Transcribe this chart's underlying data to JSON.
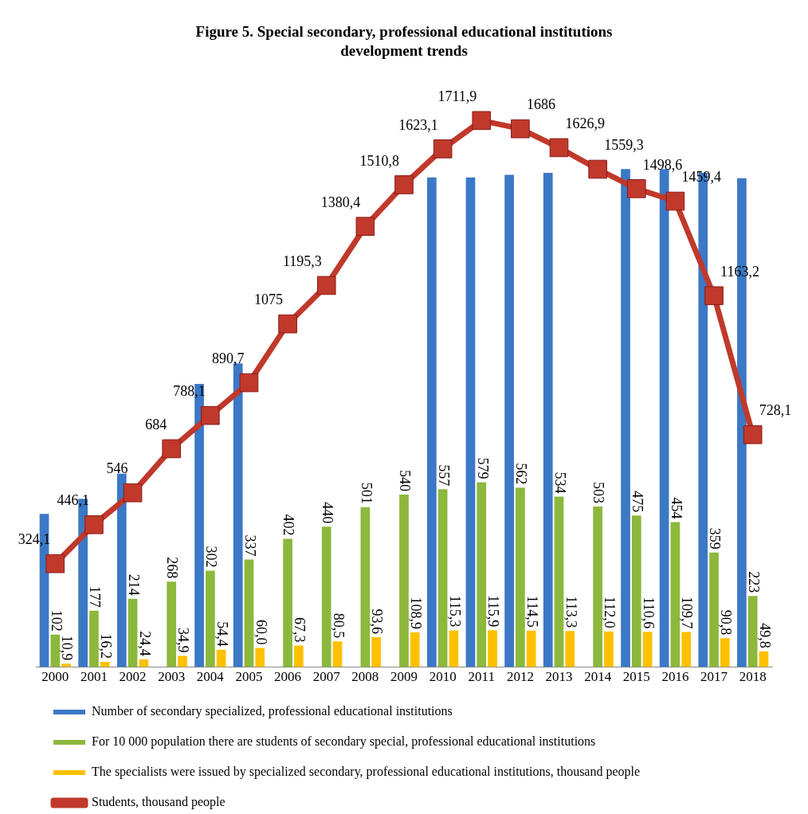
{
  "chart_data": {
    "type": "bar",
    "title": "Figure 5. Special secondary, professional educational institutions development trends",
    "legend": "bottom",
    "categories": [
      "2000",
      "2001",
      "2002",
      "2003",
      "2004",
      "2005",
      "2006",
      "2007",
      "2008",
      "2009",
      "2010",
      "2011",
      "2012",
      "2013",
      "2014",
      "2015",
      "2016",
      "2017",
      "2018"
    ],
    "series": [
      {
        "name": "Number of secondary specialized, professional educational institutions",
        "color": "#3b78c6",
        "values": [
          480,
          527,
          606,
          null,
          887,
          951,
          null,
          null,
          null,
          null,
          1534,
          1534,
          1542,
          1548,
          null,
          1560,
          1560,
          1548,
          1531
        ]
      },
      {
        "name": "For 10 000 population there are students of secondary special, professional educational institutions",
        "color": "#8cb83c",
        "values": [
          102,
          177,
          214,
          268,
          302,
          337,
          402,
          440,
          501,
          540,
          557,
          579,
          562,
          534,
          503,
          475,
          454,
          359,
          223
        ],
        "value_labels": [
          "102",
          "177",
          "214",
          "268",
          "302",
          "337",
          "402",
          "440",
          "501",
          "540",
          "557",
          "579",
          "562",
          "534",
          "503",
          "475",
          "454",
          "359",
          "223"
        ]
      },
      {
        "name": "The specialists were issued by specialized secondary, professional educational institutions, thousand people",
        "color": "#ffc000",
        "values": [
          10.9,
          16.2,
          24.4,
          34.9,
          54.4,
          60.0,
          67.3,
          80.5,
          93.6,
          108.9,
          115.3,
          115.9,
          114.5,
          113.3,
          112.0,
          110.6,
          109.7,
          90.8,
          49.8
        ],
        "value_labels": [
          "10,9",
          "16,2",
          "24,4",
          "34,9",
          "54,4",
          "60,0",
          "67,3",
          "80,5",
          "93,6",
          "108,9",
          "115,3",
          "115,9",
          "114,5",
          "113,3",
          "112,0",
          "110,6",
          "109,7",
          "90,8",
          "49,8"
        ]
      },
      {
        "name": "Students, thousand people",
        "type": "line",
        "color": "#c0392b",
        "marker": "square",
        "values": [
          324.1,
          446.1,
          546,
          684,
          788.1,
          890.7,
          1075,
          1195.3,
          1380.4,
          1510.8,
          1623.1,
          1711.9,
          1686,
          1626.9,
          1559.3,
          1498.6,
          1459.4,
          1163.2,
          728.1
        ],
        "value_labels": [
          "324,1",
          "446,1",
          "546",
          "684",
          "788,1",
          "890,7",
          "1075",
          "1195,3",
          "1380,4",
          "1510,8",
          "1623,1",
          "1711,9",
          "1686",
          "1626,9",
          "1559,3",
          "1498,6",
          "1459,4",
          "1163,2",
          "728,1"
        ]
      }
    ]
  }
}
